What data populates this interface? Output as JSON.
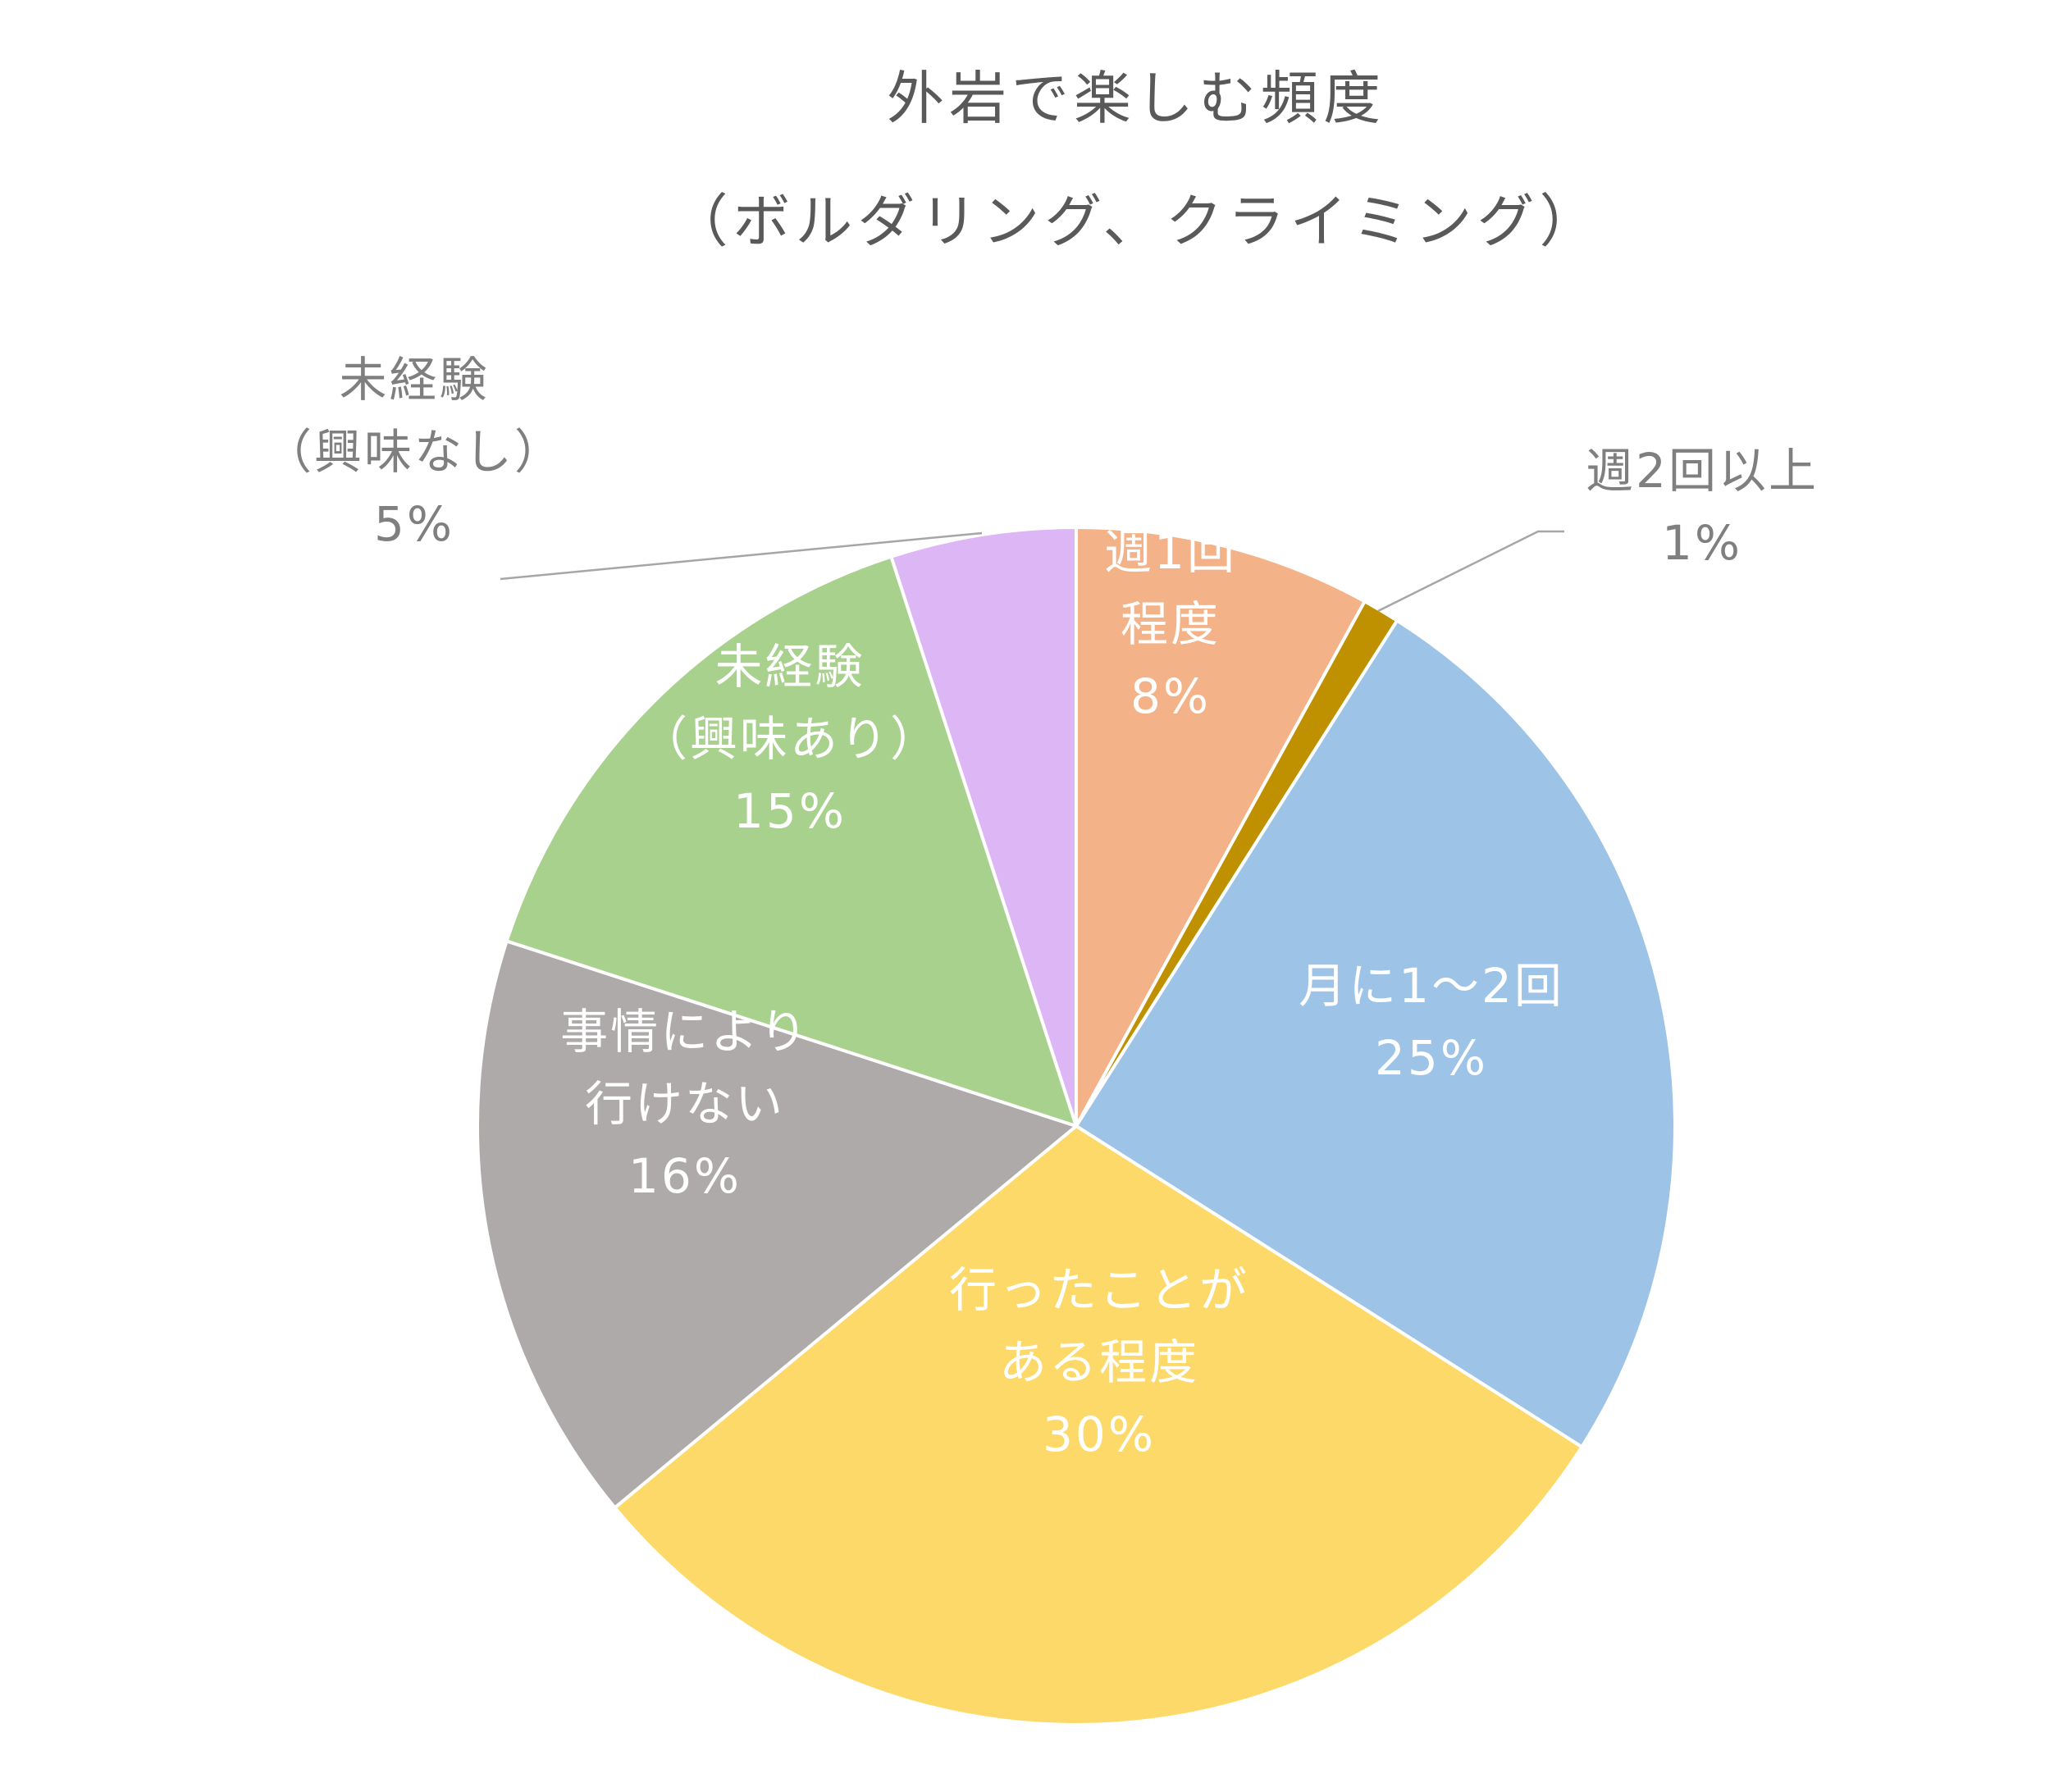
{
  "chart_data": {
    "type": "pie",
    "title_lines": [
      "外岩で楽しむ頻度",
      "（ボルダリング、クライミング）"
    ],
    "start_angle_deg": 0,
    "direction": "clockwise",
    "slices": [
      {
        "label_lines": [
          "週1回",
          "程度"
        ],
        "percent_label": "8%",
        "value": 8,
        "color": "#F3B287",
        "label_color": "#ffffff",
        "label_placement": "inside"
      },
      {
        "label_lines": [
          "週2回以上"
        ],
        "percent_label": "1%",
        "value": 1,
        "color": "#BF9000",
        "label_color": "#7f7f7f",
        "label_placement": "outside-leader"
      },
      {
        "label_lines": [
          "月に1～2回"
        ],
        "percent_label": "25%",
        "value": 25,
        "color": "#9DC3E6",
        "label_color": "#ffffff",
        "label_placement": "inside"
      },
      {
        "label_lines": [
          "行ったことが",
          "ある程度"
        ],
        "percent_label": "30%",
        "value": 30,
        "color": "#FDD969",
        "label_color": "#ffffff",
        "label_placement": "inside"
      },
      {
        "label_lines": [
          "事情により",
          "行けない"
        ],
        "percent_label": "16%",
        "value": 16,
        "color": "#AEAAAA",
        "label_color": "#ffffff",
        "label_placement": "inside"
      },
      {
        "label_lines": [
          "未経験",
          "（興味あり）"
        ],
        "percent_label": "15%",
        "value": 15,
        "color": "#A9D18E",
        "label_color": "#ffffff",
        "label_placement": "inside"
      },
      {
        "label_lines": [
          "未経験",
          "（興味なし）"
        ],
        "percent_label": "5%",
        "value": 5,
        "color": "#DDB6F5",
        "label_color": "#7f7f7f",
        "label_placement": "outside-leader"
      }
    ],
    "legend": "none"
  },
  "style": {
    "title_color": "#595959",
    "slice_border_color": "#ffffff",
    "leader_line_color": "#a6a6a6"
  }
}
